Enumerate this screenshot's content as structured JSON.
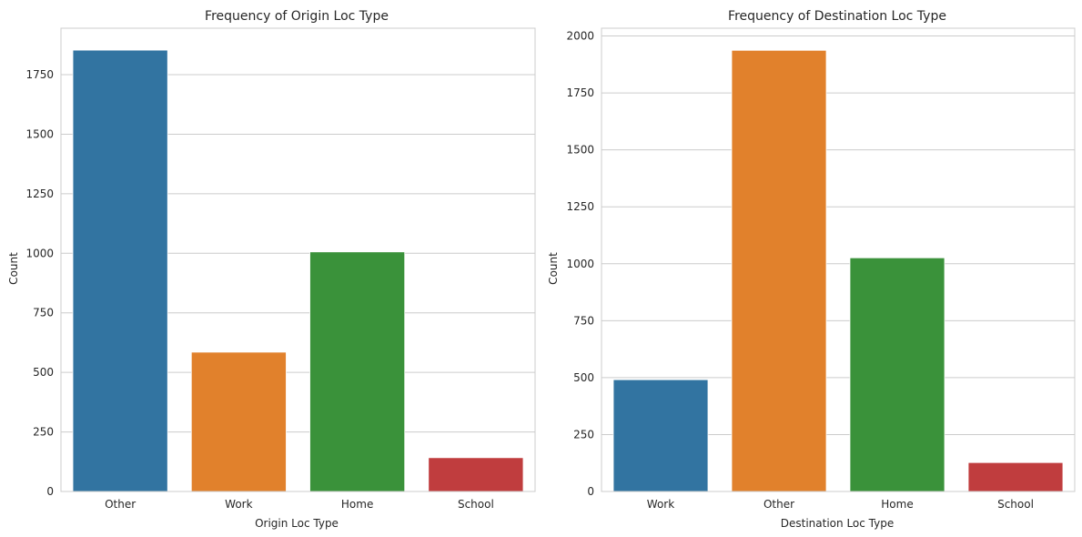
{
  "chart_data": [
    {
      "type": "bar",
      "title": "Frequency of  Origin Loc Type",
      "xlabel": "Origin Loc Type",
      "ylabel": "Count",
      "categories": [
        "Other",
        "Work",
        "Home",
        "School"
      ],
      "values": [
        1853,
        585,
        1006,
        142
      ],
      "ylim": [
        0,
        1945
      ],
      "yticks": [
        0,
        250,
        500,
        750,
        1000,
        1250,
        1500,
        1750
      ],
      "ytick_labels": [
        "0",
        "250",
        "500",
        "750",
        "1000",
        "1250",
        "1500",
        "1750"
      ],
      "colors": [
        "#3274a1",
        "#e1812c",
        "#3a923a",
        "#c03d3e"
      ],
      "grid": "horizontal"
    },
    {
      "type": "bar",
      "title": "Frequency of Destination Loc Type",
      "xlabel": "Destination Loc Type",
      "ylabel": "Count",
      "categories": [
        "Work",
        "Other",
        "Home",
        "School"
      ],
      "values": [
        491,
        1937,
        1026,
        127
      ],
      "ylim": [
        0,
        2034
      ],
      "yticks": [
        0,
        250,
        500,
        750,
        1000,
        1250,
        1500,
        1750,
        2000
      ],
      "ytick_labels": [
        "0",
        "250",
        "500",
        "750",
        "1000",
        "1250",
        "1500",
        "1750",
        "2000"
      ],
      "colors": [
        "#3274a1",
        "#e1812c",
        "#3a923a",
        "#c03d3e"
      ],
      "grid": "horizontal"
    }
  ]
}
